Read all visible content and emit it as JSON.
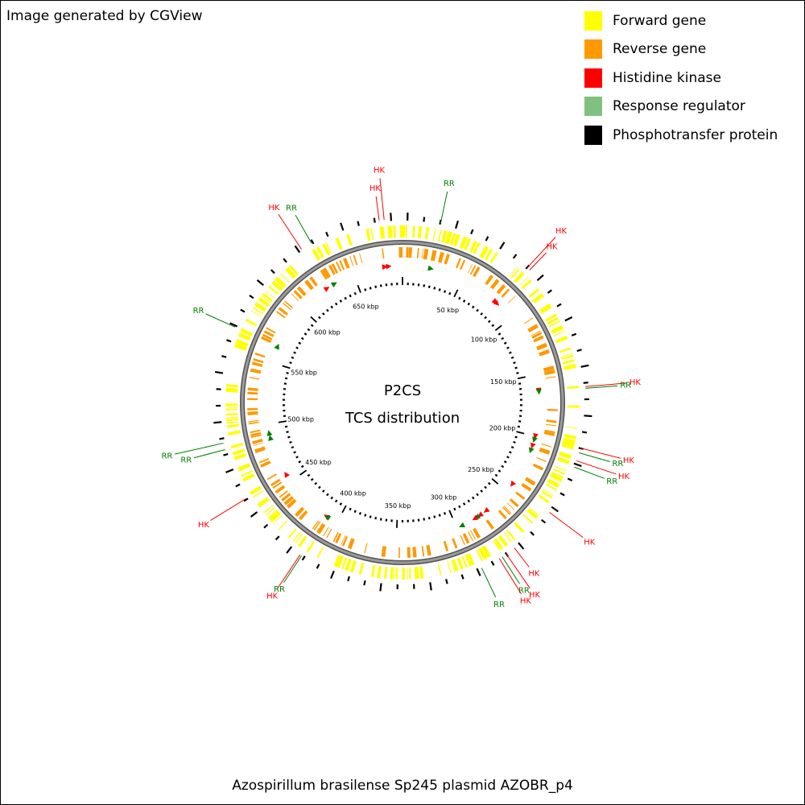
{
  "credit": "Image generated by CGView",
  "title": "Azospirillum brasilense Sp245 plasmid AZOBR_p4",
  "center": {
    "line1": "P2CS",
    "line2": "TCS distribution"
  },
  "legend": [
    {
      "label": "Forward gene",
      "color": "#ffff00"
    },
    {
      "label": "Reverse gene",
      "color": "#ff9900"
    },
    {
      "label": "Histidine kinase",
      "color": "#ff0000"
    },
    {
      "label": "Response regulator",
      "color": "#80c080"
    },
    {
      "label": "Phosphotransfer protein",
      "color": "#000000"
    }
  ],
  "colors": {
    "forward": "#ffff00",
    "reverse": "#ff9900",
    "hk": "#ff0000",
    "rr": "#008000",
    "backbone": "#888888",
    "ticks": "#000000"
  },
  "map": {
    "sequence_length_kbp": 690,
    "kbp_labels": [
      {
        "label": "50 kbp",
        "pos": 50
      },
      {
        "label": "100 kbp",
        "pos": 100
      },
      {
        "label": "150 kbp",
        "pos": 150
      },
      {
        "label": "200 kbp",
        "pos": 200
      },
      {
        "label": "250 kbp",
        "pos": 250
      },
      {
        "label": "300 kbp",
        "pos": 300
      },
      {
        "label": "350 kbp",
        "pos": 350
      },
      {
        "label": "400 kbp",
        "pos": 400
      },
      {
        "label": "450 kbp",
        "pos": 450
      },
      {
        "label": "500 kbp",
        "pos": 500
      },
      {
        "label": "550 kbp",
        "pos": 550
      },
      {
        "label": "600 kbp",
        "pos": 600
      },
      {
        "label": "650 kbp",
        "pos": 650
      }
    ],
    "callouts": [
      {
        "label": "HK",
        "type": "hk",
        "pos": 676
      },
      {
        "label": "HK",
        "type": "hk",
        "pos": 679
      },
      {
        "label": "RR",
        "type": "rr",
        "pos": 23
      },
      {
        "label": "HK",
        "type": "hk",
        "pos": 82
      },
      {
        "label": "HK",
        "type": "hk",
        "pos": 84
      },
      {
        "label": "HK",
        "type": "hk",
        "pos": 163
      },
      {
        "label": "RR",
        "type": "rr",
        "pos": 164
      },
      {
        "label": "HK",
        "type": "hk",
        "pos": 200
      },
      {
        "label": "RR",
        "type": "rr",
        "pos": 203
      },
      {
        "label": "HK",
        "type": "hk",
        "pos": 208
      },
      {
        "label": "RR",
        "type": "rr",
        "pos": 212
      },
      {
        "label": "HK",
        "type": "hk",
        "pos": 243
      },
      {
        "label": "HK",
        "type": "hk",
        "pos": 273
      },
      {
        "label": "HK",
        "type": "hk",
        "pos": 279
      },
      {
        "label": "RR",
        "type": "rr",
        "pos": 282
      },
      {
        "label": "HK",
        "type": "hk",
        "pos": 284
      },
      {
        "label": "RR",
        "type": "rr",
        "pos": 296
      },
      {
        "label": "HK",
        "type": "hk",
        "pos": 410
      },
      {
        "label": "RR",
        "type": "rr",
        "pos": 409
      },
      {
        "label": "HK",
        "type": "hk",
        "pos": 457
      },
      {
        "label": "RR",
        "type": "rr",
        "pos": 489
      },
      {
        "label": "RR",
        "type": "rr",
        "pos": 493
      },
      {
        "label": "RR",
        "type": "rr",
        "pos": 564
      },
      {
        "label": "HK",
        "type": "hk",
        "pos": 626
      },
      {
        "label": "RR",
        "type": "rr",
        "pos": 633
      }
    ]
  }
}
